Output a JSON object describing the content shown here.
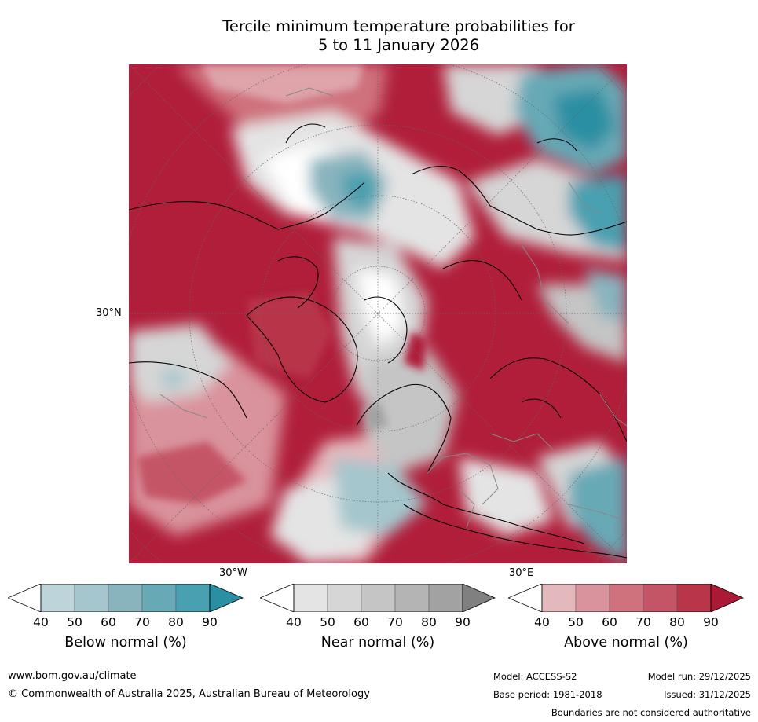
{
  "title": {
    "line1": "Tercile minimum temperature probabilities for",
    "line2": "5 to 11 January 2026"
  },
  "map": {
    "lat_label": "30°N",
    "lon_labels": [
      "30°W",
      "30°E"
    ],
    "colors": {
      "above": [
        "#e4b9bd",
        "#d9939c",
        "#cf727d",
        "#c45566",
        "#b8354a",
        "#ab1a35"
      ],
      "below": [
        "#bcd4da",
        "#a4c6cc",
        "#88b4be",
        "#68a9b6",
        "#48a0b0",
        "#2a8fa3"
      ],
      "near": [
        "#e4e4e4",
        "#d6d6d6",
        "#c5c5c5",
        "#b4b4b4",
        "#a2a2a2",
        "#808080"
      ]
    }
  },
  "colorbars": [
    {
      "label": "Below normal (%)",
      "ticks": [
        "40",
        "50",
        "60",
        "70",
        "80",
        "90"
      ]
    },
    {
      "label": "Near normal (%)",
      "ticks": [
        "40",
        "50",
        "60",
        "70",
        "80",
        "90"
      ]
    },
    {
      "label": "Above normal (%)",
      "ticks": [
        "40",
        "50",
        "60",
        "70",
        "80",
        "90"
      ]
    }
  ],
  "footer": {
    "website": "www.bom.gov.au/climate",
    "copyright": "© Commonwealth of Australia 2025, Australian Bureau of Meteorology",
    "model": "Model: ACCESS-S2",
    "model_run": "Model run: 29/12/2025",
    "base_period": "Base period: 1981-2018",
    "issued": "Issued: 31/12/2025",
    "disclaimer": "Boundaries are not considered authoritative"
  }
}
